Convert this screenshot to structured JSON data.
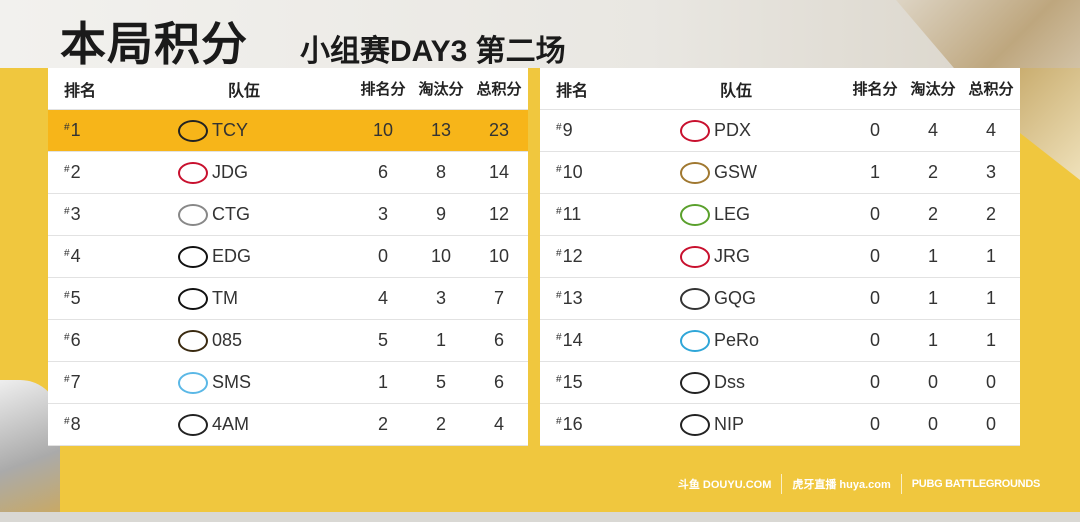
{
  "title": "本局积分",
  "subtitle": "小组赛DAY3  第二场",
  "headers": {
    "rank": "排名",
    "team": "队伍",
    "placement": "排名分",
    "kills": "淘汰分",
    "total": "总积分"
  },
  "left": [
    {
      "rank": "1",
      "team": "TCY",
      "placement": "10",
      "kills": "13",
      "total": "23",
      "logo_color": "#222"
    },
    {
      "rank": "2",
      "team": "JDG",
      "placement": "6",
      "kills": "8",
      "total": "14",
      "logo_color": "#c8102e"
    },
    {
      "rank": "3",
      "team": "CTG",
      "placement": "3",
      "kills": "9",
      "total": "12",
      "logo_color": "#888"
    },
    {
      "rank": "4",
      "team": "EDG",
      "placement": "0",
      "kills": "10",
      "total": "10",
      "logo_color": "#111"
    },
    {
      "rank": "5",
      "team": "TM",
      "placement": "4",
      "kills": "3",
      "total": "7",
      "logo_color": "#111"
    },
    {
      "rank": "6",
      "team": "085",
      "placement": "5",
      "kills": "1",
      "total": "6",
      "logo_color": "#3a2a10"
    },
    {
      "rank": "7",
      "team": "SMS",
      "placement": "1",
      "kills": "5",
      "total": "6",
      "logo_color": "#5bb8e6"
    },
    {
      "rank": "8",
      "team": "4AM",
      "placement": "2",
      "kills": "2",
      "total": "4",
      "logo_color": "#222"
    }
  ],
  "right": [
    {
      "rank": "9",
      "team": "PDX",
      "placement": "0",
      "kills": "4",
      "total": "4",
      "logo_color": "#c8102e"
    },
    {
      "rank": "10",
      "team": "GSW",
      "placement": "1",
      "kills": "2",
      "total": "3",
      "logo_color": "#a07830"
    },
    {
      "rank": "11",
      "team": "LEG",
      "placement": "0",
      "kills": "2",
      "total": "2",
      "logo_color": "#5aa02c"
    },
    {
      "rank": "12",
      "team": "JRG",
      "placement": "0",
      "kills": "1",
      "total": "1",
      "logo_color": "#c8102e"
    },
    {
      "rank": "13",
      "team": "GQG",
      "placement": "0",
      "kills": "1",
      "total": "1",
      "logo_color": "#333"
    },
    {
      "rank": "14",
      "team": "PeRo",
      "placement": "0",
      "kills": "1",
      "total": "1",
      "logo_color": "#2fa6d8"
    },
    {
      "rank": "15",
      "team": "Dss",
      "placement": "0",
      "kills": "0",
      "total": "0",
      "logo_color": "#222"
    },
    {
      "rank": "16",
      "team": "NIP",
      "placement": "0",
      "kills": "0",
      "total": "0",
      "logo_color": "#222"
    }
  ],
  "highlight_color": "#f7b519",
  "sponsors": [
    "斗鱼 DOUYU.COM",
    "虎牙直播 huya.com",
    "PUBG BATTLEGROUNDS"
  ]
}
